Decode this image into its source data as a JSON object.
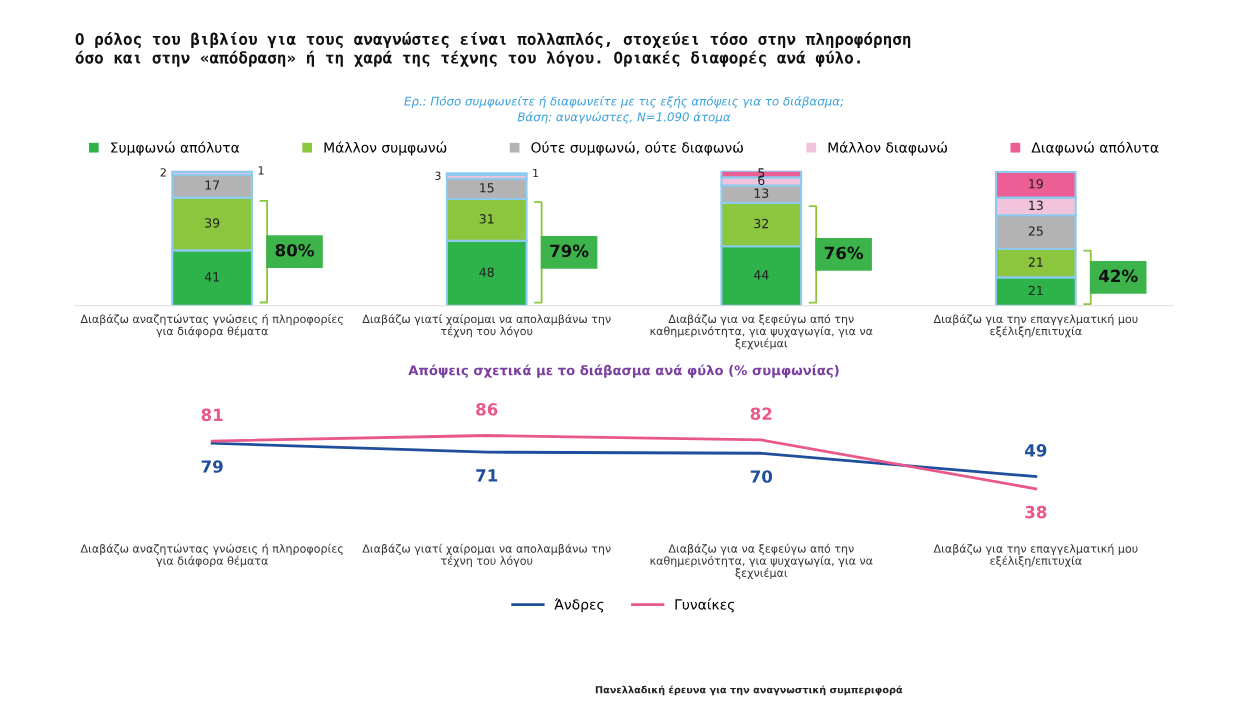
{
  "chart_data": [
    {
      "type": "bar",
      "stacked": true,
      "title": "Ο ρόλος του βιβλίου για τους αναγνώστες είναι πολλαπλός, στοχεύει τόσο στην πληροφόρηση\nόσο και στην «απόδραση» ή τη χαρά της τέχνης του λόγου. Οριακές διαφορές ανά φύλο.",
      "subtitle": "Ερ.: Πόσο συμφωνείτε ή διαφωνείτε με τις εξής απόψεις για το διάβασμα;\nΒάση: αναγνώστες, N=1.090 άτομα",
      "categories": [
        "Διαβάζω αναζητώντας γνώσεις ή πληροφορίες\nγια διάφορα θέματα",
        "Διαβάζω γιατί χαίρομαι να απολαμβάνω την\nτέχνη του λόγου",
        "Διαβάζω για να ξεφεύγω από την\nκαθημερινότητα, για ψυχαγωγία, για να\nξεχνιέμαι",
        "Διαβάζω για την επαγγελματική μου\nεξέλιξη/επιτυχία"
      ],
      "series": [
        {
          "name": "Συμφωνώ απόλυτα",
          "color": "#2db34a",
          "values": [
            41,
            48,
            44,
            21
          ]
        },
        {
          "name": "Μάλλον συμφωνώ",
          "color": "#8cc63f",
          "values": [
            39,
            31,
            32,
            21
          ]
        },
        {
          "name": "Ούτε συμφωνώ, ούτε διαφωνώ",
          "color": "#b3b3b3",
          "values": [
            17,
            15,
            13,
            25
          ]
        },
        {
          "name": "Μάλλον διαφωνώ",
          "color": "#f2c4dc",
          "values": [
            2,
            3,
            6,
            13
          ]
        },
        {
          "name": "Διαφωνώ απόλυτα",
          "color": "#ec5f95",
          "values": [
            1,
            1,
            5,
            19
          ]
        }
      ],
      "data_labels": true,
      "legend": "top",
      "annotations": [
        "80%",
        "79%",
        "76%",
        "42%"
      ]
    },
    {
      "type": "line",
      "title": "Απόψεις σχετικά με το διάβασμα ανά φύλο (% συμφωνίας)",
      "categories": [
        "Διαβάζω αναζητώντας γνώσεις ή πληροφορίες\nγια διάφορα θέματα",
        "Διαβάζω γιατί χαίρομαι να απολαμβάνω την\nτέχνη του λόγου",
        "Διαβάζω για να ξεφεύγω από την\nκαθημερινότητα, για ψυχαγωγία, για να\nξεχνιέμαι",
        "Διαβάζω για την επαγγελματική μου\nεξέλιξη/επιτυχία"
      ],
      "series": [
        {
          "name": "Άνδρες",
          "color": "#1f4e9c",
          "values": [
            79,
            71,
            70,
            49
          ]
        },
        {
          "name": "Γυναίκες",
          "color": "#e8588a",
          "values": [
            81,
            86,
            82,
            38
          ]
        }
      ],
      "data_labels": true,
      "legend": "bottom",
      "annotations": [
        "Πανελλαδική έρευνα για την αναγνωστική συμπεριφορά"
      ]
    }
  ]
}
